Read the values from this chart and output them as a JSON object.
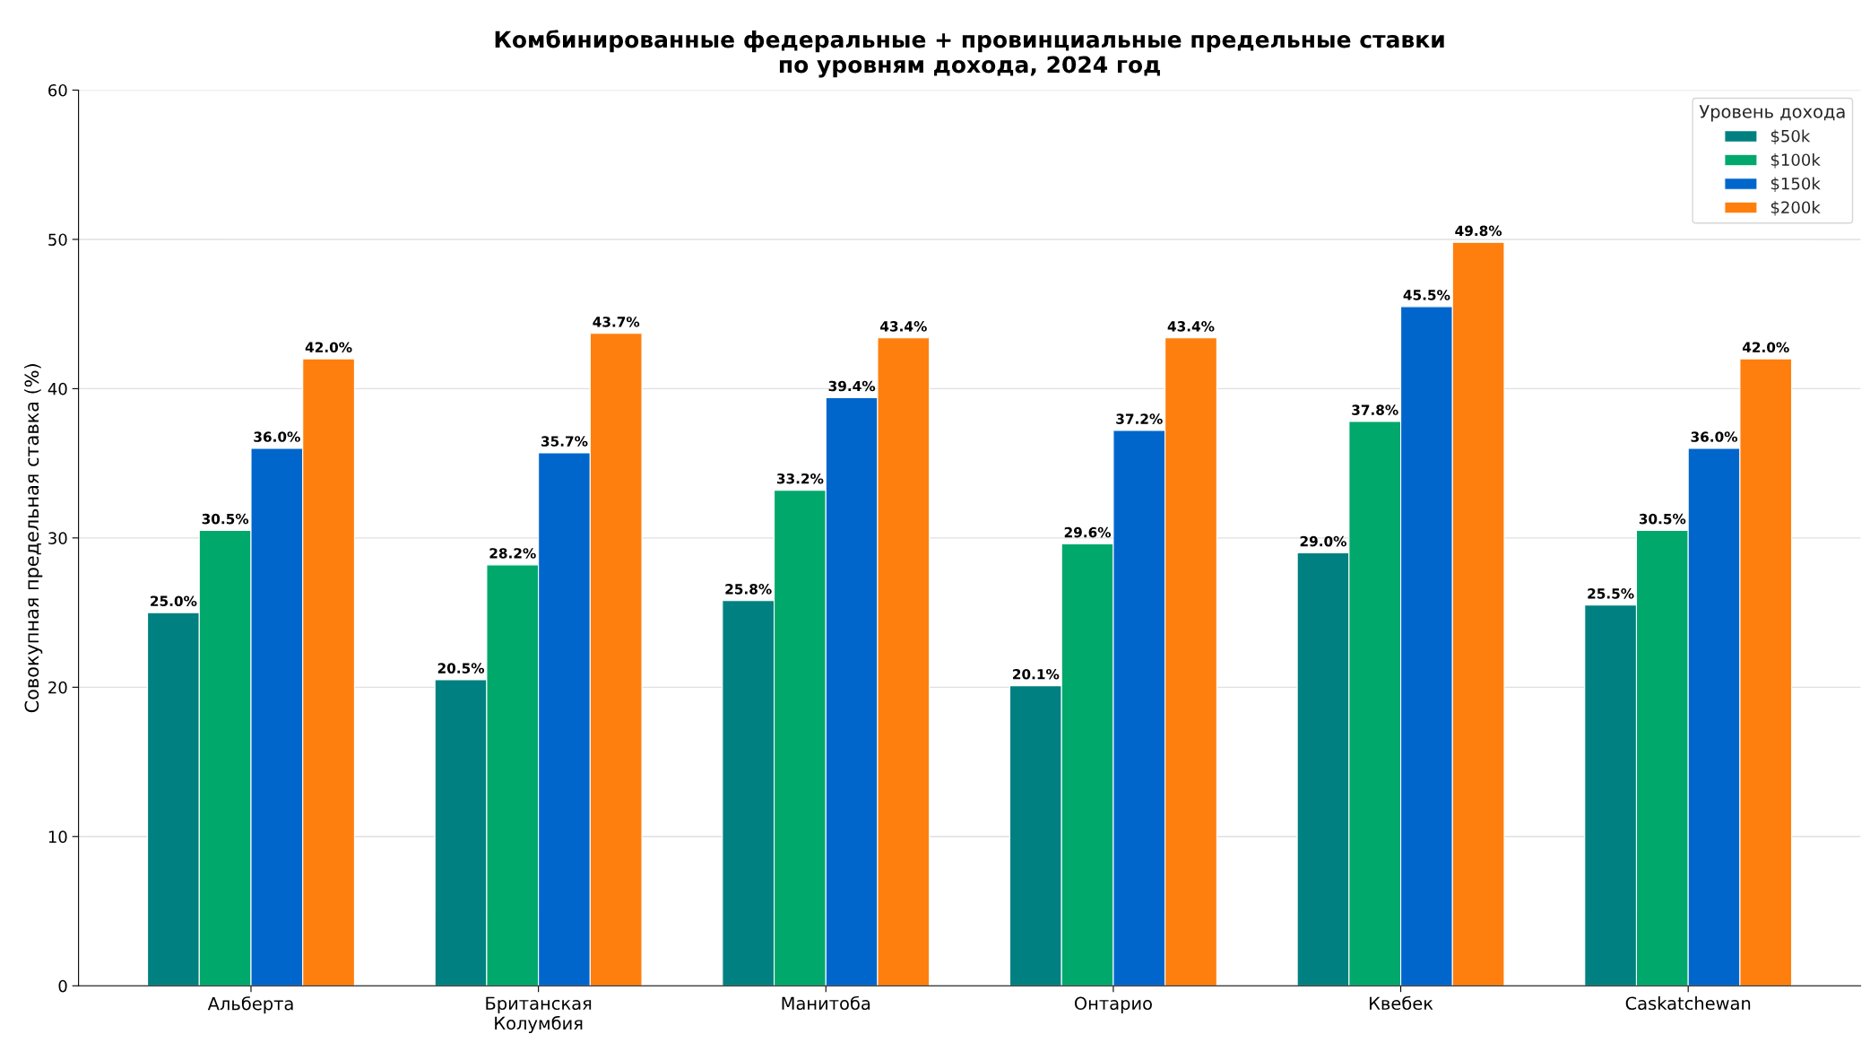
{
  "chart_data": {
    "type": "bar",
    "title": "Комбинированные федеральные + провинциальные предельные ставки\nпо уровням дохода, 2024 год",
    "ylabel": "Совокупная предельная ставка (%)",
    "legend_title": "Уровень дохода",
    "categories": [
      "Альберта",
      "Британская\nКолумбия",
      "Манитоба",
      "Онтарио",
      "Квебек",
      "Саskatchewan"
    ],
    "series": [
      {
        "name": "$50k",
        "color": "#008080",
        "values": [
          25.0,
          20.5,
          25.8,
          20.1,
          29.0,
          25.5
        ],
        "value_labels": [
          "25.0%",
          "20.5%",
          "25.8%",
          "20.1%",
          "29.0%",
          "25.5%"
        ]
      },
      {
        "name": "$100k",
        "color": "#00a86b",
        "values": [
          30.5,
          28.2,
          33.2,
          29.6,
          37.8,
          30.5
        ],
        "value_labels": [
          "30.5%",
          "28.2%",
          "33.2%",
          "29.6%",
          "37.8%",
          "30.5%"
        ]
      },
      {
        "name": "$150k",
        "color": "#0066cc",
        "values": [
          36.0,
          35.7,
          39.4,
          37.2,
          45.5,
          36.0
        ],
        "value_labels": [
          "36.0%",
          "35.7%",
          "39.4%",
          "37.2%",
          "45.5%",
          "36.0%"
        ]
      },
      {
        "name": "$200k",
        "color": "#ff7f0e",
        "values": [
          42.0,
          43.7,
          43.4,
          43.4,
          49.8,
          42.0
        ],
        "value_labels": [
          "42.0%",
          "43.7%",
          "43.4%",
          "43.4%",
          "49.8%",
          "42.0%"
        ]
      }
    ],
    "ylim": [
      0,
      60
    ],
    "yticks": [
      0,
      10,
      20,
      30,
      40,
      50,
      60
    ],
    "grid": "y",
    "legend": "top right"
  }
}
